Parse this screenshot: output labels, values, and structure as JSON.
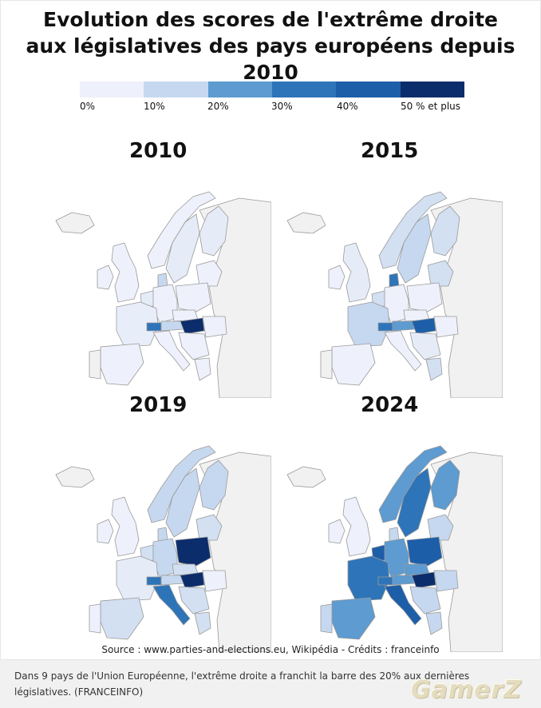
{
  "title_line1": "Evolution des scores de l'extrême droite",
  "title_line2": "aux législatives des pays européens depuis 2010",
  "legend": {
    "labels": [
      "0%",
      "10%",
      "20%",
      "30%",
      "40%",
      "50 % et plus"
    ],
    "colors": [
      "#eef1fb",
      "#c6d8ef",
      "#5d9bd0",
      "#2e74b8",
      "#1d5ea8",
      "#0c2d6b"
    ]
  },
  "maps": [
    {
      "year": "2010",
      "countries": {
        "portugal": "#f1f1f1",
        "spain": "#eef1fb",
        "france": "#e8eef9",
        "uk": "#eef1fb",
        "ireland": "#eef1fb",
        "iceland": "#f1f1f1",
        "norway": "#eef1fb",
        "sweden": "#e6ecf7",
        "finland": "#e6ecf7",
        "denmark": "#c6d8ef",
        "benelux": "#e6ecf7",
        "germany": "#eef1fb",
        "poland": "#eef1fb",
        "czechia": "#eef1fb",
        "austria": "#c6d8ef",
        "switzerland": "#2e74b8",
        "italy": "#eef1fb",
        "hungary": "#0c2d6b",
        "balkans": "#eef1fb",
        "romania": "#eef1fb",
        "baltics": "#eef1fb",
        "greece": "#eef1fb",
        "east": "#f1f1f1"
      }
    },
    {
      "year": "2015",
      "countries": {
        "portugal": "#f1f1f1",
        "spain": "#eef1fb",
        "france": "#c6d8ef",
        "uk": "#e6ecf7",
        "ireland": "#eef1fb",
        "iceland": "#f1f1f1",
        "norway": "#d2e0f2",
        "sweden": "#c6d8ef",
        "finland": "#d2e0f2",
        "denmark": "#2e74b8",
        "benelux": "#d2e0f2",
        "germany": "#eef1fb",
        "poland": "#eef1fb",
        "czechia": "#eef1fb",
        "austria": "#5d9bd0",
        "switzerland": "#2e74b8",
        "italy": "#eef1fb",
        "hungary": "#1d5ea8",
        "balkans": "#e6ecf7",
        "romania": "#eef1fb",
        "baltics": "#d2e0f2",
        "greece": "#d2e0f2",
        "east": "#f1f1f1"
      }
    },
    {
      "year": "2019",
      "countries": {
        "portugal": "#eef1fb",
        "spain": "#d2e0f2",
        "france": "#e6ecf7",
        "uk": "#eef1fb",
        "ireland": "#eef1fb",
        "iceland": "#f1f1f1",
        "norway": "#c6d8ef",
        "sweden": "#c6d8ef",
        "finland": "#c6d8ef",
        "denmark": "#c6d8ef",
        "benelux": "#d2e0f2",
        "germany": "#c6d8ef",
        "poland": "#0c2d6b",
        "czechia": "#d2e0f2",
        "austria": "#c6d8ef",
        "switzerland": "#2e74b8",
        "italy": "#2e74b8",
        "hungary": "#0c2d6b",
        "balkans": "#d2e0f2",
        "romania": "#eef1fb",
        "baltics": "#d2e0f2",
        "greece": "#d2e0f2",
        "east": "#f1f1f1"
      }
    },
    {
      "year": "2024",
      "countries": {
        "portugal": "#c6d8ef",
        "spain": "#5d9bd0",
        "france": "#2e74b8",
        "uk": "#eef1fb",
        "ireland": "#eef1fb",
        "iceland": "#f1f1f1",
        "norway": "#5d9bd0",
        "sweden": "#2e74b8",
        "finland": "#5d9bd0",
        "denmark": "#c6d8ef",
        "benelux": "#1d5ea8",
        "germany": "#5d9bd0",
        "poland": "#1d5ea8",
        "czechia": "#5d9bd0",
        "austria": "#5d9bd0",
        "switzerland": "#2e74b8",
        "italy": "#1d5ea8",
        "hungary": "#0c2d6b",
        "balkans": "#c6d8ef",
        "romania": "#c6d8ef",
        "baltics": "#c6d8ef",
        "greece": "#c6d8ef",
        "east": "#f1f1f1"
      }
    }
  ],
  "source": "Source : www.parties-and-elections.eu, Wikipédia - Crédits : franceinfo",
  "caption_line1": "Dans 9 pays de l'Union Européenne, l'extrême droite a franchit la barre des 20% aux dernières",
  "caption_line2": "législatives. (FRANCEINFO)",
  "watermark": "GamerZ"
}
